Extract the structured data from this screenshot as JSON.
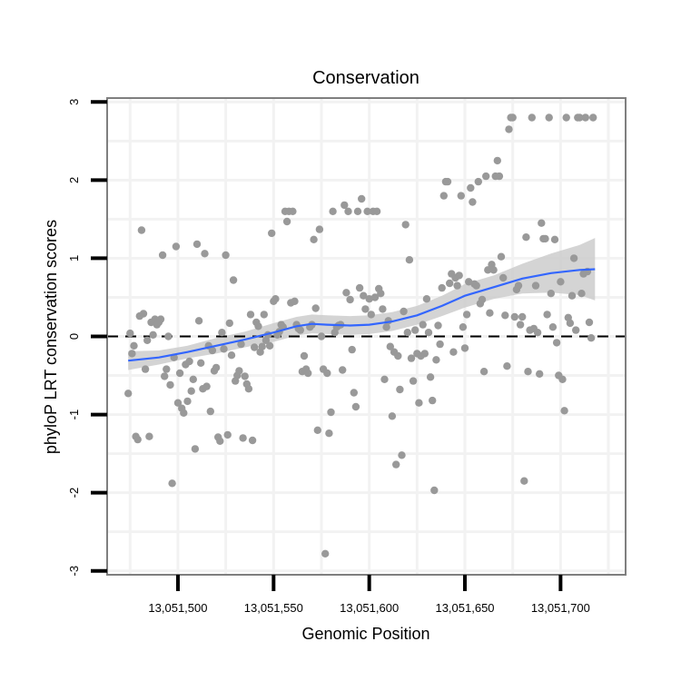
{
  "chart_data": {
    "type": "scatter",
    "title": "Conservation",
    "xlabel": "Genomic Position",
    "ylabel": "phyloP LRT conservation scores",
    "xlim": [
      13051463,
      13051734
    ],
    "ylim": [
      -3.05,
      3.05
    ],
    "x_ticks": [
      13051500,
      13051550,
      13051600,
      13051650,
      13051700
    ],
    "x_tick_labels": [
      "13,051,500",
      "13,051,550",
      "13,051,600",
      "13,051,650",
      "13,051,700"
    ],
    "y_ticks": [
      -3,
      -2,
      -1,
      0,
      1,
      2,
      3
    ],
    "y_tick_labels": [
      "-3",
      "-2",
      "-1",
      "0",
      "1",
      "2",
      "3"
    ],
    "reference_line": {
      "y": 0,
      "style": "dashed"
    },
    "grid": true,
    "colors": {
      "points": "#999999",
      "smooth": "#3366ff",
      "ribbon": "#cccccc",
      "panel_border": "#7f7f7f",
      "grid": "#f2f2f2"
    },
    "series": [
      {
        "name": "phyloP scores",
        "points": [
          [
            13051474,
            -0.73
          ],
          [
            13051475,
            0.04
          ],
          [
            13051476,
            -0.22
          ],
          [
            13051477,
            -0.12
          ],
          [
            13051478,
            -1.28
          ],
          [
            13051479,
            -1.32
          ],
          [
            13051480,
            0.26
          ],
          [
            13051481,
            1.36
          ],
          [
            13051482,
            0.29
          ],
          [
            13051483,
            -0.42
          ],
          [
            13051484,
            -0.05
          ],
          [
            13051485,
            -1.28
          ],
          [
            13051486,
            0.18
          ],
          [
            13051487,
            0.02
          ],
          [
            13051488,
            0.22
          ],
          [
            13051489,
            0.15
          ],
          [
            13051490,
            0.18
          ],
          [
            13051491,
            0.22
          ],
          [
            13051492,
            1.04
          ],
          [
            13051493,
            -0.51
          ],
          [
            13051494,
            -0.42
          ],
          [
            13051495,
            0.0
          ],
          [
            13051496,
            -0.62
          ],
          [
            13051497,
            -1.88
          ],
          [
            13051498,
            -0.27
          ],
          [
            13051499,
            1.15
          ],
          [
            13051500,
            -0.85
          ],
          [
            13051501,
            -0.47
          ],
          [
            13051502,
            -0.92
          ],
          [
            13051503,
            -0.98
          ],
          [
            13051504,
            -0.36
          ],
          [
            13051505,
            -0.83
          ],
          [
            13051506,
            -0.32
          ],
          [
            13051507,
            -0.7
          ],
          [
            13051508,
            -0.55
          ],
          [
            13051509,
            -1.44
          ],
          [
            13051510,
            1.18
          ],
          [
            13051511,
            0.2
          ],
          [
            13051512,
            -0.34
          ],
          [
            13051513,
            -0.67
          ],
          [
            13051514,
            1.06
          ],
          [
            13051515,
            -0.64
          ],
          [
            13051516,
            -0.12
          ],
          [
            13051517,
            -0.96
          ],
          [
            13051518,
            -0.18
          ],
          [
            13051519,
            -0.44
          ],
          [
            13051520,
            -0.4
          ],
          [
            13051521,
            -1.29
          ],
          [
            13051522,
            -1.34
          ],
          [
            13051523,
            0.05
          ],
          [
            13051524,
            -0.16
          ],
          [
            13051525,
            1.04
          ],
          [
            13051526,
            -1.26
          ],
          [
            13051527,
            0.17
          ],
          [
            13051528,
            -0.24
          ],
          [
            13051529,
            0.72
          ],
          [
            13051530,
            -0.57
          ],
          [
            13051531,
            -0.5
          ],
          [
            13051532,
            -0.44
          ],
          [
            13051533,
            -0.1
          ],
          [
            13051534,
            -1.3
          ],
          [
            13051535,
            -0.51
          ],
          [
            13051536,
            -0.61
          ],
          [
            13051537,
            -0.67
          ],
          [
            13051538,
            0.28
          ],
          [
            13051539,
            -1.33
          ],
          [
            13051540,
            -0.14
          ],
          [
            13051541,
            0.18
          ],
          [
            13051542,
            0.13
          ],
          [
            13051543,
            -0.2
          ],
          [
            13051544,
            -0.13
          ],
          [
            13051545,
            0.28
          ],
          [
            13051546,
            -0.05
          ],
          [
            13051547,
            0.02
          ],
          [
            13051548,
            -0.12
          ],
          [
            13051549,
            1.32
          ],
          [
            13051550,
            0.45
          ],
          [
            13051551,
            0.48
          ],
          [
            13051552,
            0.02
          ],
          [
            13051553,
            0.06
          ],
          [
            13051554,
            0.15
          ],
          [
            13051555,
            0.12
          ],
          [
            13051556,
            1.6
          ],
          [
            13051557,
            1.47
          ],
          [
            13051558,
            1.6
          ],
          [
            13051559,
            0.43
          ],
          [
            13051560,
            1.6
          ],
          [
            13051561,
            0.45
          ],
          [
            13051562,
            0.15
          ],
          [
            13051563,
            0.1
          ],
          [
            13051564,
            0.08
          ],
          [
            13051565,
            -0.45
          ],
          [
            13051566,
            -0.25
          ],
          [
            13051567,
            -0.42
          ],
          [
            13051568,
            -0.47
          ],
          [
            13051569,
            0.12
          ],
          [
            13051570,
            0.15
          ],
          [
            13051571,
            1.24
          ],
          [
            13051572,
            0.36
          ],
          [
            13051573,
            -1.2
          ],
          [
            13051574,
            1.37
          ],
          [
            13051575,
            0.0
          ],
          [
            13051576,
            -0.42
          ],
          [
            13051577,
            -2.78
          ],
          [
            13051578,
            -0.47
          ],
          [
            13051579,
            -1.24
          ],
          [
            13051580,
            -0.97
          ],
          [
            13051581,
            1.6
          ],
          [
            13051582,
            0.05
          ],
          [
            13051583,
            0.12
          ],
          [
            13051584,
            0.14
          ],
          [
            13051585,
            0.15
          ],
          [
            13051586,
            -0.43
          ],
          [
            13051587,
            1.68
          ],
          [
            13051588,
            0.56
          ],
          [
            13051589,
            1.6
          ],
          [
            13051590,
            0.47
          ],
          [
            13051591,
            -0.17
          ],
          [
            13051592,
            -0.72
          ],
          [
            13051593,
            -0.9
          ],
          [
            13051594,
            1.6
          ],
          [
            13051595,
            0.62
          ],
          [
            13051596,
            1.76
          ],
          [
            13051597,
            0.52
          ],
          [
            13051598,
            0.35
          ],
          [
            13051599,
            1.6
          ],
          [
            13051600,
            0.48
          ],
          [
            13051601,
            0.28
          ],
          [
            13051602,
            1.6
          ],
          [
            13051603,
            0.5
          ],
          [
            13051604,
            1.6
          ],
          [
            13051605,
            0.61
          ],
          [
            13051606,
            0.55
          ],
          [
            13051607,
            0.35
          ],
          [
            13051608,
            -0.55
          ],
          [
            13051609,
            0.12
          ],
          [
            13051610,
            0.2
          ],
          [
            13051611,
            -0.13
          ],
          [
            13051612,
            -1.02
          ],
          [
            13051613,
            -0.2
          ],
          [
            13051614,
            -1.64
          ],
          [
            13051615,
            -0.25
          ],
          [
            13051616,
            -0.68
          ],
          [
            13051617,
            -1.52
          ],
          [
            13051618,
            0.32
          ],
          [
            13051619,
            1.43
          ],
          [
            13051620,
            0.05
          ],
          [
            13051621,
            0.98
          ],
          [
            13051622,
            -0.28
          ],
          [
            13051623,
            -0.57
          ],
          [
            13051624,
            0.08
          ],
          [
            13051625,
            -0.22
          ],
          [
            13051626,
            -0.85
          ],
          [
            13051627,
            -0.25
          ],
          [
            13051628,
            0.15
          ],
          [
            13051629,
            -0.22
          ],
          [
            13051630,
            0.48
          ],
          [
            13051631,
            0.05
          ],
          [
            13051632,
            -0.52
          ],
          [
            13051633,
            -0.82
          ],
          [
            13051634,
            -1.97
          ],
          [
            13051635,
            -0.3
          ],
          [
            13051636,
            0.14
          ],
          [
            13051637,
            -0.1
          ],
          [
            13051638,
            0.62
          ],
          [
            13051639,
            1.8
          ],
          [
            13051640,
            1.98
          ],
          [
            13051641,
            1.98
          ],
          [
            13051642,
            0.68
          ],
          [
            13051643,
            0.8
          ],
          [
            13051644,
            -0.2
          ],
          [
            13051645,
            0.75
          ],
          [
            13051646,
            0.65
          ],
          [
            13051647,
            0.78
          ],
          [
            13051648,
            1.8
          ],
          [
            13051649,
            0.12
          ],
          [
            13051650,
            -0.15
          ],
          [
            13051651,
            0.28
          ],
          [
            13051652,
            0.7
          ],
          [
            13051653,
            1.9
          ],
          [
            13051654,
            1.72
          ],
          [
            13051655,
            0.67
          ],
          [
            13051656,
            0.65
          ],
          [
            13051657,
            1.98
          ],
          [
            13051658,
            0.42
          ],
          [
            13051659,
            0.47
          ],
          [
            13051660,
            -0.45
          ],
          [
            13051661,
            2.05
          ],
          [
            13051662,
            0.85
          ],
          [
            13051663,
            0.3
          ],
          [
            13051664,
            0.92
          ],
          [
            13051665,
            0.85
          ],
          [
            13051666,
            2.05
          ],
          [
            13051667,
            2.25
          ],
          [
            13051668,
            2.05
          ],
          [
            13051669,
            1.02
          ],
          [
            13051670,
            0.75
          ],
          [
            13051671,
            0.27
          ],
          [
            13051672,
            -0.38
          ],
          [
            13051673,
            2.65
          ],
          [
            13051674,
            2.8
          ],
          [
            13051675,
            2.8
          ],
          [
            13051676,
            0.25
          ],
          [
            13051677,
            0.6
          ],
          [
            13051678,
            0.65
          ],
          [
            13051679,
            0.15
          ],
          [
            13051680,
            0.25
          ],
          [
            13051681,
            -1.85
          ],
          [
            13051682,
            1.27
          ],
          [
            13051683,
            -0.45
          ],
          [
            13051684,
            0.08
          ],
          [
            13051685,
            2.8
          ],
          [
            13051686,
            0.1
          ],
          [
            13051687,
            0.65
          ],
          [
            13051688,
            0.05
          ],
          [
            13051689,
            -0.48
          ],
          [
            13051690,
            1.45
          ],
          [
            13051691,
            1.25
          ],
          [
            13051692,
            1.25
          ],
          [
            13051693,
            0.28
          ],
          [
            13051694,
            2.8
          ],
          [
            13051695,
            0.55
          ],
          [
            13051696,
            0.12
          ],
          [
            13051697,
            1.24
          ],
          [
            13051698,
            -0.08
          ],
          [
            13051699,
            -0.5
          ],
          [
            13051700,
            0.7
          ],
          [
            13051701,
            -0.55
          ],
          [
            13051702,
            -0.95
          ],
          [
            13051703,
            2.8
          ],
          [
            13051704,
            0.24
          ],
          [
            13051705,
            0.17
          ],
          [
            13051706,
            0.52
          ],
          [
            13051707,
            1.0
          ],
          [
            13051708,
            0.08
          ],
          [
            13051709,
            2.8
          ],
          [
            13051710,
            2.8
          ],
          [
            13051711,
            0.55
          ],
          [
            13051712,
            0.8
          ],
          [
            13051713,
            2.8
          ],
          [
            13051714,
            0.83
          ],
          [
            13051715,
            0.18
          ],
          [
            13051716,
            -0.02
          ],
          [
            13051717,
            2.8
          ]
        ]
      },
      {
        "name": "smooth fit",
        "type": "line",
        "x": [
          13051474,
          13051490,
          13051505,
          13051520,
          13051535,
          13051550,
          13051562,
          13051570,
          13051578,
          13051590,
          13051600,
          13051612,
          13051625,
          13051638,
          13051650,
          13051665,
          13051680,
          13051695,
          13051710,
          13051718
        ],
        "y": [
          -0.31,
          -0.27,
          -0.2,
          -0.12,
          -0.04,
          0.05,
          0.13,
          0.16,
          0.15,
          0.14,
          0.15,
          0.19,
          0.27,
          0.39,
          0.52,
          0.63,
          0.74,
          0.81,
          0.85,
          0.86
        ],
        "lower": [
          -0.43,
          -0.36,
          -0.28,
          -0.22,
          -0.14,
          -0.07,
          0.01,
          0.04,
          0.03,
          0.02,
          0.03,
          0.07,
          0.15,
          0.26,
          0.37,
          0.48,
          0.55,
          0.56,
          0.53,
          0.46
        ],
        "upper": [
          -0.19,
          -0.18,
          -0.12,
          -0.02,
          0.06,
          0.17,
          0.25,
          0.28,
          0.27,
          0.26,
          0.27,
          0.31,
          0.39,
          0.52,
          0.67,
          0.78,
          0.93,
          1.06,
          1.17,
          1.26
        ]
      }
    ]
  }
}
